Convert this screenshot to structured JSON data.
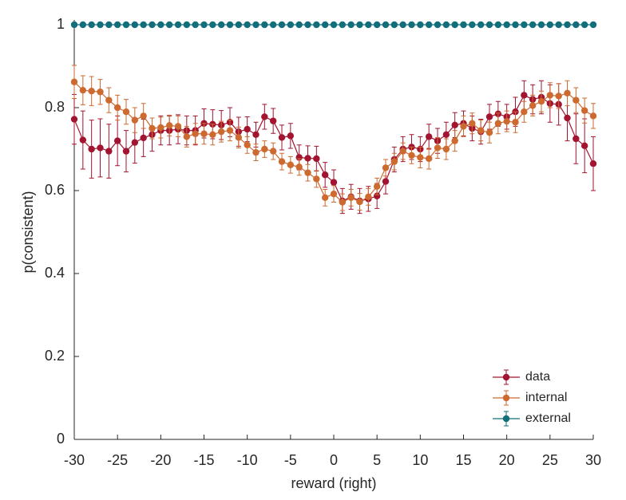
{
  "chart_data": {
    "type": "line",
    "xlabel": "reward (right)",
    "ylabel": "p(consistent)",
    "x": [
      -30,
      -29,
      -28,
      -27,
      -26,
      -25,
      -24,
      -23,
      -22,
      -21,
      -20,
      -19,
      -18,
      -17,
      -16,
      -15,
      -14,
      -13,
      -12,
      -11,
      -10,
      -9,
      -8,
      -7,
      -6,
      -5,
      -4,
      -3,
      -2,
      -1,
      0,
      1,
      2,
      3,
      4,
      5,
      6,
      7,
      8,
      9,
      10,
      11,
      12,
      13,
      14,
      15,
      16,
      17,
      18,
      19,
      20,
      21,
      22,
      23,
      24,
      25,
      26,
      27,
      28,
      29,
      30
    ],
    "series": [
      {
        "name": "data",
        "color": "#a2142f",
        "values": [
          0.772,
          0.722,
          0.7,
          0.703,
          0.695,
          0.72,
          0.695,
          0.716,
          0.727,
          0.735,
          0.745,
          0.745,
          0.748,
          0.745,
          0.745,
          0.762,
          0.76,
          0.758,
          0.765,
          0.742,
          0.748,
          0.735,
          0.778,
          0.768,
          0.728,
          0.732,
          0.68,
          0.678,
          0.677,
          0.638,
          0.62,
          0.575,
          0.585,
          0.575,
          0.58,
          0.587,
          0.622,
          0.675,
          0.7,
          0.705,
          0.7,
          0.73,
          0.72,
          0.735,
          0.758,
          0.762,
          0.75,
          0.742,
          0.778,
          0.785,
          0.778,
          0.79,
          0.83,
          0.82,
          0.825,
          0.81,
          0.808,
          0.775,
          0.725,
          0.708,
          0.665
        ],
        "errors": [
          0.06,
          0.07,
          0.07,
          0.07,
          0.065,
          0.06,
          0.05,
          0.05,
          0.045,
          0.04,
          0.035,
          0.035,
          0.035,
          0.035,
          0.035,
          0.035,
          0.035,
          0.035,
          0.035,
          0.035,
          0.03,
          0.03,
          0.03,
          0.03,
          0.03,
          0.03,
          0.03,
          0.03,
          0.03,
          0.03,
          0.03,
          0.03,
          0.03,
          0.03,
          0.03,
          0.03,
          0.03,
          0.03,
          0.03,
          0.03,
          0.03,
          0.03,
          0.03,
          0.03,
          0.03,
          0.03,
          0.03,
          0.03,
          0.03,
          0.03,
          0.03,
          0.035,
          0.035,
          0.035,
          0.04,
          0.045,
          0.05,
          0.055,
          0.06,
          0.065,
          0.065
        ]
      },
      {
        "name": "internal",
        "color": "#cd6a30",
        "values": [
          0.862,
          0.842,
          0.84,
          0.838,
          0.818,
          0.8,
          0.79,
          0.77,
          0.78,
          0.75,
          0.752,
          0.757,
          0.755,
          0.73,
          0.737,
          0.737,
          0.735,
          0.742,
          0.745,
          0.728,
          0.71,
          0.692,
          0.7,
          0.695,
          0.67,
          0.662,
          0.657,
          0.643,
          0.628,
          0.583,
          0.592,
          0.572,
          0.583,
          0.573,
          0.585,
          0.61,
          0.655,
          0.67,
          0.695,
          0.685,
          0.68,
          0.677,
          0.703,
          0.7,
          0.72,
          0.755,
          0.762,
          0.745,
          0.74,
          0.762,
          0.767,
          0.765,
          0.79,
          0.805,
          0.815,
          0.83,
          0.828,
          0.835,
          0.818,
          0.793,
          0.78
        ],
        "errors": [
          0.04,
          0.035,
          0.035,
          0.03,
          0.03,
          0.03,
          0.03,
          0.03,
          0.03,
          0.025,
          0.025,
          0.025,
          0.025,
          0.025,
          0.025,
          0.025,
          0.025,
          0.025,
          0.025,
          0.025,
          0.02,
          0.02,
          0.02,
          0.02,
          0.02,
          0.02,
          0.02,
          0.02,
          0.02,
          0.02,
          0.02,
          0.02,
          0.02,
          0.02,
          0.02,
          0.02,
          0.02,
          0.02,
          0.02,
          0.02,
          0.025,
          0.025,
          0.025,
          0.025,
          0.025,
          0.025,
          0.025,
          0.025,
          0.025,
          0.025,
          0.025,
          0.025,
          0.025,
          0.025,
          0.025,
          0.03,
          0.03,
          0.03,
          0.03,
          0.03,
          0.03
        ]
      },
      {
        "name": "external",
        "color": "#126e7a",
        "values": [
          1,
          1,
          1,
          1,
          1,
          1,
          1,
          1,
          1,
          1,
          1,
          1,
          1,
          1,
          1,
          1,
          1,
          1,
          1,
          1,
          1,
          1,
          1,
          1,
          1,
          1,
          1,
          1,
          1,
          1,
          1,
          1,
          1,
          1,
          1,
          1,
          1,
          1,
          1,
          1,
          1,
          1,
          1,
          1,
          1,
          1,
          1,
          1,
          1,
          1,
          1,
          1,
          1,
          1,
          1,
          1,
          1,
          1,
          1,
          1,
          1
        ]
      }
    ],
    "xlim": [
      -30,
      30
    ],
    "xticks": [
      -30,
      -25,
      -20,
      -15,
      -10,
      -5,
      0,
      5,
      10,
      15,
      20,
      25,
      30
    ],
    "ylim": [
      0,
      1
    ],
    "yticks": [
      0,
      0.2,
      0.4,
      0.6,
      0.8,
      1
    ],
    "legend": "lower right"
  }
}
